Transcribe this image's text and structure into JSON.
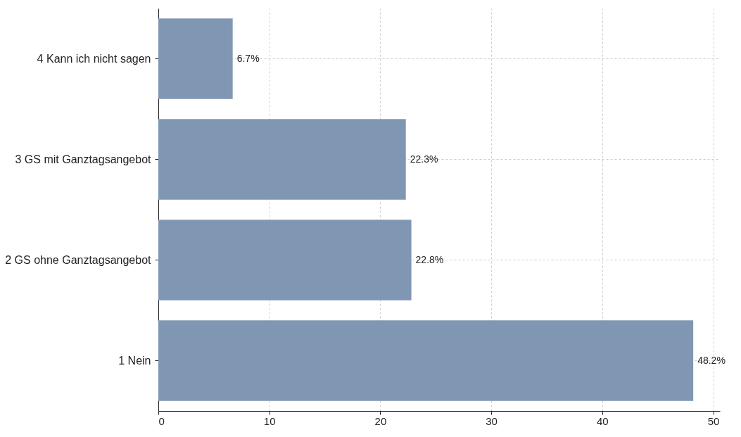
{
  "chart_data": {
    "type": "bar",
    "orientation": "horizontal",
    "categories": [
      "4 Kann ich nicht sagen",
      "3 GS mit Ganztagsangebot",
      "2 GS ohne Ganztagsangebot",
      "1 Nein"
    ],
    "values": [
      6.7,
      22.3,
      22.8,
      48.2
    ],
    "value_labels": [
      "6.7%",
      "22.3%",
      "22.8%",
      "48.2%"
    ],
    "color": "#7f97b2",
    "xlim": [
      0,
      50.6
    ],
    "xticks": [
      0,
      10,
      20,
      30,
      40,
      50
    ],
    "grid": true
  }
}
